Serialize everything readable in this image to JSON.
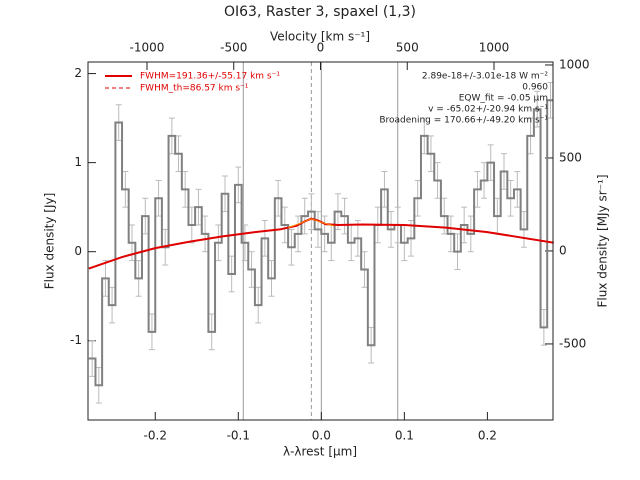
{
  "chart_data": {
    "type": "line",
    "title": "OI63, Raster 3, spaxel (1,3)",
    "x_label": "λ-λrest [μm]",
    "y_label": "Flux density [Jy]",
    "x2_label": "Velocity [km s⁻¹]",
    "y2_label": "Flux density [MJy sr⁻¹]",
    "xlim": [
      -0.281,
      0.279
    ],
    "ylim": [
      -1.89,
      2.13
    ],
    "x2lim": [
      -1340,
      1340
    ],
    "y2lim": [
      -909,
      1016
    ],
    "xticks": [
      -0.2,
      -0.1,
      {
        "value": 0,
        "label": "0.0"
      },
      0.1,
      0.2
    ],
    "yticks": [
      -1,
      0,
      1,
      2
    ],
    "x2ticks": [
      -1000,
      -500,
      0,
      500,
      1000
    ],
    "y2ticks": [
      -500,
      0,
      500,
      1000
    ],
    "data": {
      "color": "#808080",
      "error": 0.2,
      "x": [
        -0.276,
        -0.268,
        -0.26,
        -0.252,
        -0.244,
        -0.236,
        -0.228,
        -0.22,
        -0.212,
        -0.204,
        -0.196,
        -0.188,
        -0.18,
        -0.172,
        -0.164,
        -0.156,
        -0.148,
        -0.14,
        -0.132,
        -0.124,
        -0.116,
        -0.108,
        -0.1,
        -0.092,
        -0.084,
        -0.076,
        -0.068,
        -0.06,
        -0.052,
        -0.044,
        -0.036,
        -0.028,
        -0.02,
        -0.012,
        -0.004,
        0.004,
        0.012,
        0.02,
        0.028,
        0.036,
        0.044,
        0.052,
        0.06,
        0.068,
        0.076,
        0.084,
        0.092,
        0.1,
        0.108,
        0.116,
        0.124,
        0.132,
        0.14,
        0.148,
        0.156,
        0.164,
        0.172,
        0.18,
        0.188,
        0.196,
        0.204,
        0.212,
        0.22,
        0.228,
        0.236,
        0.244,
        0.252,
        0.26,
        0.268,
        0.276
      ],
      "values": [
        -1.2,
        -1.5,
        -0.3,
        -0.6,
        1.45,
        0.7,
        0.1,
        -0.3,
        0.4,
        -0.9,
        0.6,
        0.05,
        1.3,
        1.1,
        0.7,
        0.3,
        0.5,
        0.2,
        -0.9,
        0.1,
        0.65,
        -0.25,
        0.75,
        0.1,
        -0.2,
        -0.6,
        0.15,
        -0.3,
        0.6,
        0.3,
        0.05,
        0.2,
        0.4,
        0.45,
        0.25,
        0.2,
        0.1,
        0.45,
        0.4,
        0.1,
        0.15,
        -0.2,
        -1.05,
        0.3,
        0.7,
        0.25,
        0.3,
        0.1,
        0.15,
        0.6,
        1.3,
        1.1,
        0.8,
        0.4,
        0.2,
        0.0,
        0.3,
        0.2,
        0.7,
        0.8,
        1.0,
        0.4,
        0.9,
        0.6,
        0.7,
        0.25,
        1.3,
        1.6,
        -0.85,
        1.7
      ]
    },
    "series": [
      {
        "name": "FWHM=191.36+/-55.17 km s⁻¹",
        "color": "#e00000",
        "style": "solid",
        "x": [
          -0.28,
          -0.24,
          -0.2,
          -0.16,
          -0.12,
          -0.08,
          -0.05,
          -0.03,
          -0.02,
          -0.012,
          -0.004,
          0.005,
          0.02,
          0.05,
          0.1,
          0.15,
          0.2,
          0.24,
          0.28
        ],
        "values": [
          -0.19,
          -0.06,
          0.04,
          0.11,
          0.17,
          0.22,
          0.25,
          0.29,
          0.34,
          0.37,
          0.35,
          0.31,
          0.3,
          0.305,
          0.3,
          0.27,
          0.22,
          0.16,
          0.1
        ]
      },
      {
        "name": "FWHM_th=86.57 km s⁻¹",
        "color": "#e00000",
        "style": "dashed",
        "x": [
          -0.04,
          -0.025,
          -0.012,
          0.0,
          0.015
        ],
        "values": [
          0.27,
          0.32,
          0.37,
          0.33,
          0.29
        ]
      }
    ],
    "vlines": [
      {
        "x": -0.094,
        "style": "solid"
      },
      {
        "x": 0,
        "style": "solid"
      },
      {
        "x": 0.092,
        "style": "solid"
      },
      {
        "x": -0.012,
        "style": "dashed"
      }
    ],
    "annotations": [
      "2.89e-18+/-3.01e-18 W m⁻²",
      "0.960",
      "EQW_fit = -0.05 μm",
      "v = -65.02+/-20.94 km s⁻¹",
      "Broadening = 170.66+/-49.20 km s⁻¹"
    ]
  }
}
